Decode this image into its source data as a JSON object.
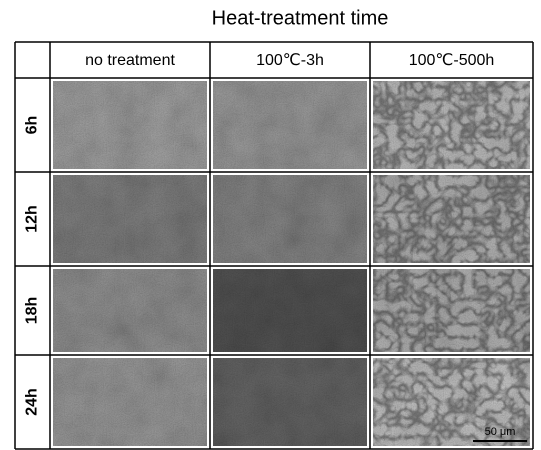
{
  "header": {
    "title": "Heat-treatment time"
  },
  "columns": [
    "no treatment",
    "100℃-3h",
    "100℃-500h"
  ],
  "rows": [
    "6h",
    "12h",
    "18h",
    "24h"
  ],
  "scale_bar": "50 μm"
}
